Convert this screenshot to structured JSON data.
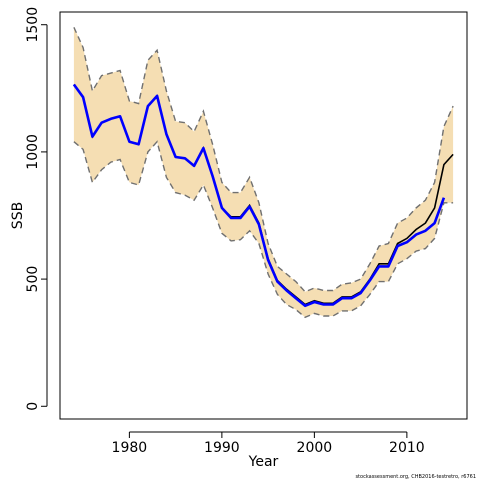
{
  "chart_data": {
    "type": "line",
    "title": "",
    "xlabel": "Year",
    "ylabel": "SSB",
    "xlim": [
      1972.5,
      2016.5
    ],
    "ylim": [
      -50,
      1550
    ],
    "xticks": [
      1980,
      1990,
      2000,
      2010
    ],
    "yticks": [
      0,
      500,
      1000,
      1500
    ],
    "grid": false,
    "footer": "stockassessment.org, CHB2016-testretro, r6761",
    "colors": {
      "band": "#f5deb3",
      "bound": "#707070",
      "retro": "#0000ff",
      "estimate": "#000000"
    },
    "series": [
      {
        "role": "upper",
        "x": [
          1974,
          1975,
          1976,
          1977,
          1978,
          1979,
          1980,
          1981,
          1982,
          1983,
          1984,
          1985,
          1986,
          1987,
          1988,
          1989,
          1990,
          1991,
          1992,
          1993,
          1994,
          1995,
          1996,
          1997,
          1998,
          1999,
          2000,
          2001,
          2002,
          2003,
          2004,
          2005,
          2006,
          2007,
          2008,
          2009,
          2010,
          2011,
          2012,
          2013,
          2014,
          2015
        ],
        "values": [
          1490,
          1410,
          1240,
          1300,
          1310,
          1320,
          1200,
          1190,
          1360,
          1400,
          1240,
          1120,
          1115,
          1080,
          1160,
          1030,
          880,
          840,
          840,
          900,
          800,
          640,
          550,
          520,
          490,
          450,
          465,
          455,
          455,
          480,
          485,
          500,
          560,
          630,
          640,
          720,
          740,
          780,
          810,
          880,
          1100,
          1180
        ]
      },
      {
        "role": "lower",
        "x": [
          1974,
          1975,
          1976,
          1977,
          1978,
          1979,
          1980,
          1981,
          1982,
          1983,
          1984,
          1985,
          1986,
          1987,
          1988,
          1989,
          1990,
          1991,
          1992,
          1993,
          1994,
          1995,
          1996,
          1997,
          1998,
          1999,
          2000,
          2001,
          2002,
          2003,
          2004,
          2005,
          2006,
          2007,
          2008,
          2009,
          2010,
          2011,
          2012,
          2013,
          2014,
          2015
        ],
        "values": [
          1040,
          1010,
          880,
          930,
          960,
          970,
          880,
          870,
          1000,
          1040,
          900,
          840,
          830,
          810,
          870,
          780,
          680,
          650,
          655,
          690,
          640,
          520,
          440,
          400,
          380,
          350,
          365,
          355,
          355,
          375,
          375,
          395,
          440,
          490,
          490,
          560,
          580,
          610,
          620,
          660,
          800,
          800
        ]
      },
      {
        "role": "estimate",
        "x": [
          1974,
          1975,
          1976,
          1977,
          1978,
          1979,
          1980,
          1981,
          1982,
          1983,
          1984,
          1985,
          1986,
          1987,
          1988,
          1989,
          1990,
          1991,
          1992,
          1993,
          1994,
          1995,
          1996,
          1997,
          1998,
          1999,
          2000,
          2001,
          2002,
          2003,
          2004,
          2005,
          2006,
          2007,
          2008,
          2009,
          2010,
          2011,
          2012,
          2013,
          2014,
          2015
        ],
        "values": [
          1265,
          1215,
          1060,
          1115,
          1130,
          1140,
          1040,
          1030,
          1180,
          1220,
          1070,
          980,
          975,
          945,
          1015,
          905,
          780,
          745,
          745,
          790,
          720,
          580,
          495,
          460,
          430,
          400,
          415,
          405,
          405,
          430,
          430,
          450,
          500,
          560,
          560,
          640,
          660,
          695,
          720,
          780,
          950,
          990
        ]
      },
      {
        "role": "retro",
        "x": [
          1974,
          1975,
          1976,
          1977,
          1978,
          1979,
          1980,
          1981,
          1982,
          1983,
          1984,
          1985,
          1986,
          1987,
          1988,
          1989,
          1990,
          1991,
          1992,
          1993,
          1994,
          1995,
          1996,
          1997,
          1998,
          1999,
          2000,
          2001,
          2002,
          2003,
          2004,
          2005,
          2006,
          2007,
          2008,
          2009,
          2010,
          2011,
          2012,
          2013,
          2014
        ],
        "values": [
          1265,
          1215,
          1060,
          1115,
          1130,
          1140,
          1040,
          1030,
          1180,
          1220,
          1070,
          980,
          975,
          945,
          1015,
          905,
          780,
          740,
          740,
          785,
          715,
          575,
          490,
          455,
          425,
          395,
          410,
          400,
          400,
          425,
          425,
          445,
          495,
          550,
          550,
          630,
          645,
          675,
          690,
          720,
          820
        ]
      }
    ]
  }
}
